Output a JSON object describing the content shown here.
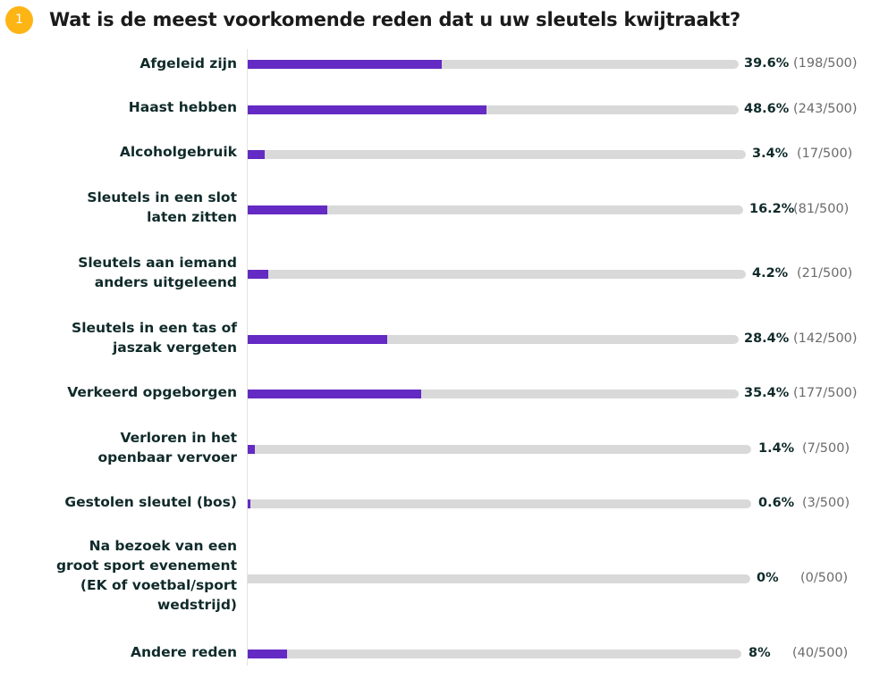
{
  "question": {
    "number": "1",
    "title": "Wat is de meest voorkomende reden dat u uw sleutels kwijtraakt?"
  },
  "colors": {
    "bar": "#642ac4",
    "track": "#d9d9d9",
    "badge": "#fdb515"
  },
  "rows": [
    {
      "label": "Afgeleid zijn",
      "pct": "39.6%",
      "count": "(198/500)",
      "value": 39.6
    },
    {
      "label": "Haast hebben",
      "pct": "48.6%",
      "count": "(243/500)",
      "value": 48.6
    },
    {
      "label": "Alcoholgebruik",
      "pct": "3.4%",
      "count": "(17/500)",
      "value": 3.4
    },
    {
      "label": "Sleutels in een slot\nlaten zitten",
      "pct": "16.2%",
      "count": "(81/500)",
      "value": 16.2
    },
    {
      "label": "Sleutels aan iemand\nanders uitgeleend",
      "pct": "4.2%",
      "count": "(21/500)",
      "value": 4.2
    },
    {
      "label": "Sleutels in een tas of\njaszak vergeten",
      "pct": "28.4%",
      "count": "(142/500)",
      "value": 28.4
    },
    {
      "label": "Verkeerd opgeborgen",
      "pct": "35.4%",
      "count": "(177/500)",
      "value": 35.4
    },
    {
      "label": "Verloren in het\nopenbaar vervoer",
      "pct": "1.4%",
      "count": "(7/500)",
      "value": 1.4
    },
    {
      "label": "Gestolen sleutel (bos)",
      "pct": "0.6%",
      "count": "(3/500)",
      "value": 0.6
    },
    {
      "label": "Na bezoek van een\ngroot sport evenement\n(EK of voetbal/sport\nwedstrijd)",
      "pct": "0%",
      "count": "(0/500)",
      "value": 0
    },
    {
      "label": "Andere reden",
      "pct": "8%",
      "count": "(40/500)",
      "value": 8
    }
  ],
  "chart_data": {
    "type": "bar",
    "orientation": "horizontal",
    "title": "Wat is de meest voorkomende reden dat u uw sleutels kwijtraakt?",
    "categories": [
      "Afgeleid zijn",
      "Haast hebben",
      "Alcoholgebruik",
      "Sleutels in een slot laten zitten",
      "Sleutels aan iemand anders uitgeleend",
      "Sleutels in een tas of jaszak vergeten",
      "Verkeerd opgeborgen",
      "Verloren in het openbaar vervoer",
      "Gestolen sleutel (bos)",
      "Na bezoek van een groot sport evenement (EK of voetbal/sport wedstrijd)",
      "Andere reden"
    ],
    "values": [
      39.6,
      48.6,
      3.4,
      16.2,
      4.2,
      28.4,
      35.4,
      1.4,
      0.6,
      0,
      8
    ],
    "counts": [
      198,
      243,
      17,
      81,
      21,
      142,
      177,
      7,
      3,
      0,
      40
    ],
    "total": 500,
    "xlabel": "",
    "ylabel": "",
    "xlim": [
      0,
      100
    ],
    "unit": "%"
  }
}
